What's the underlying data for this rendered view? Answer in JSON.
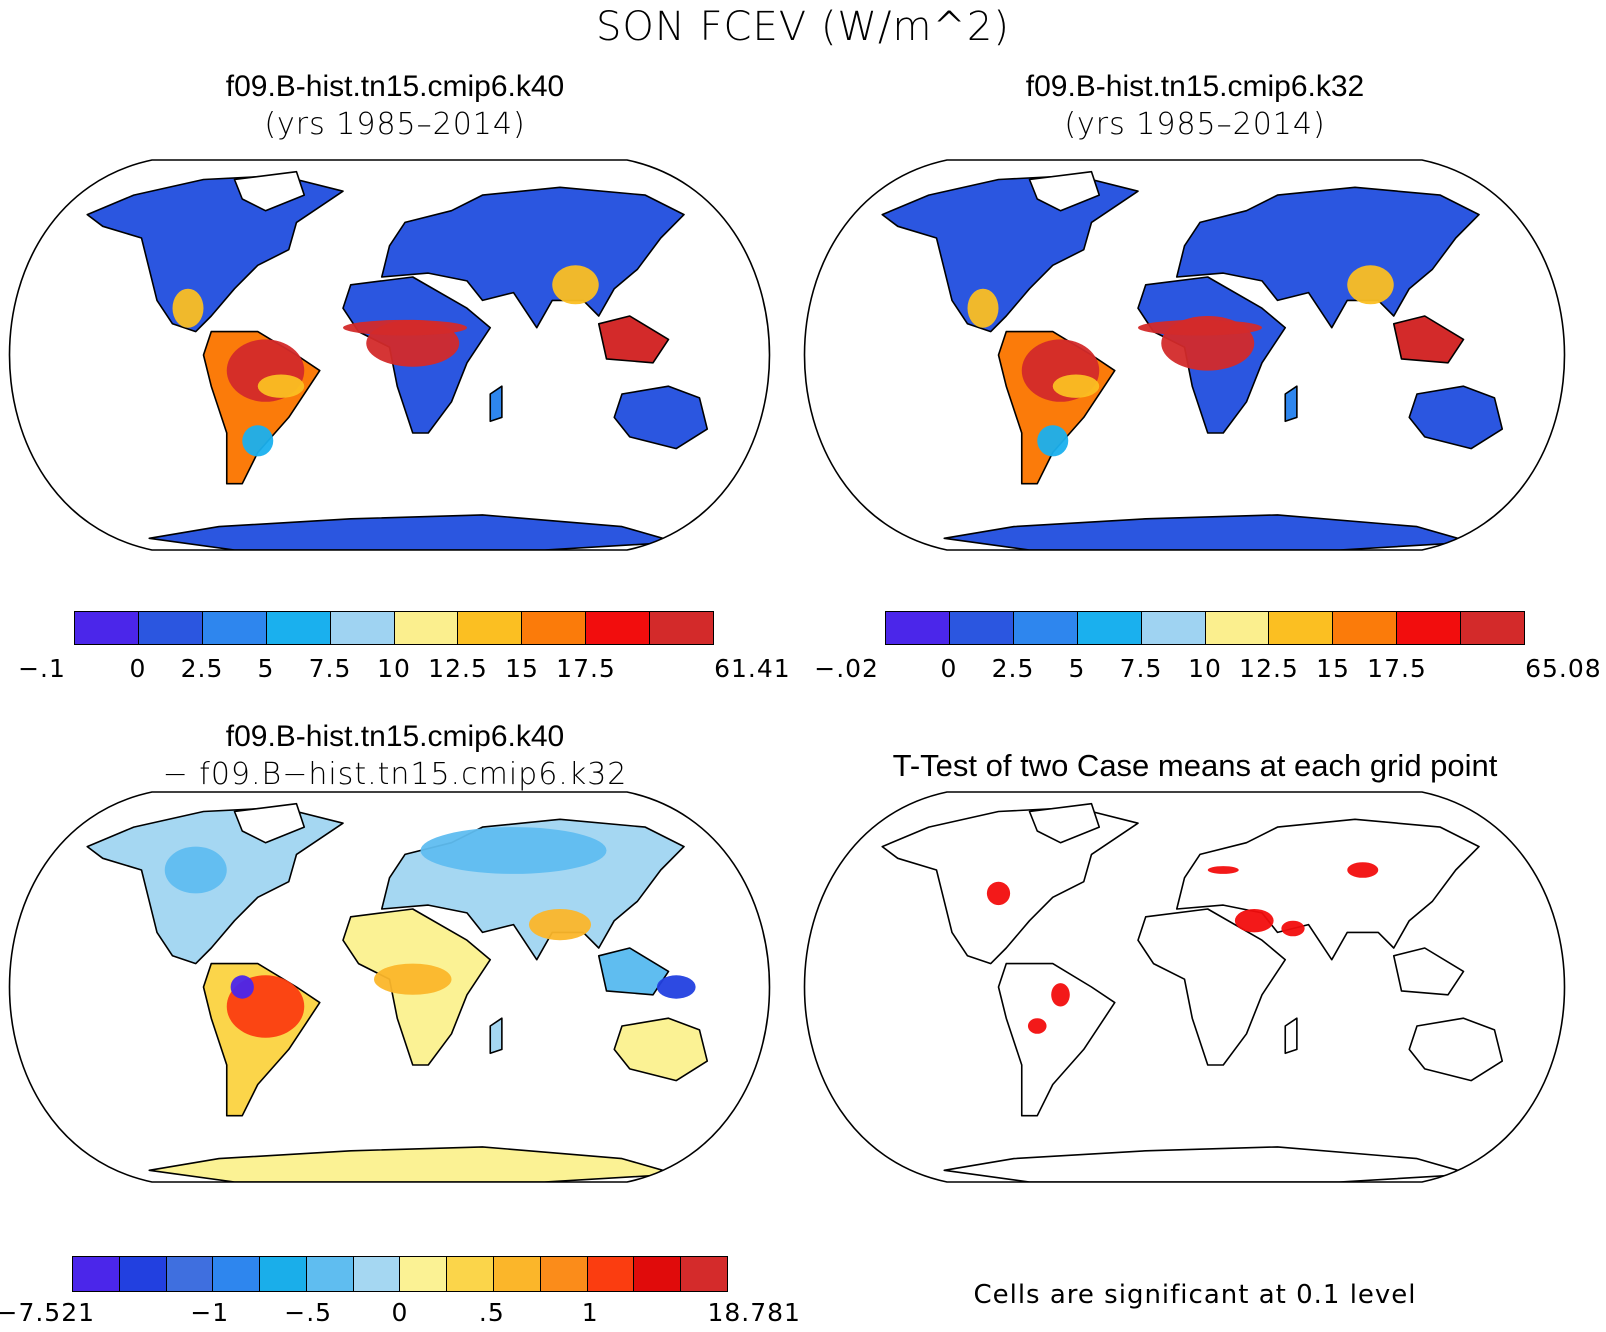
{
  "figure": {
    "title": "SON FCEV (W/m^2)"
  },
  "panels": [
    {
      "id": "case1",
      "title_line1": "f09.B-hist.tn15.cmip6.k40",
      "title_line2": "(yrs 1985–2014)",
      "colorbar": {
        "colors": [
          "#4b26ea",
          "#2b56e0",
          "#2e86ee",
          "#1ab0ee",
          "#9fd3f2",
          "#fbef8e",
          "#fbbf22",
          "#fb7b0a",
          "#f20d0d",
          "#d32a2a"
        ],
        "labels": [
          "−.1",
          "0",
          "2.5",
          "5",
          "7.5",
          "10",
          "12.5",
          "15",
          "17.5",
          "61.41"
        ]
      }
    },
    {
      "id": "case2",
      "title_line1": "f09.B-hist.tn15.cmip6.k32",
      "title_line2": "(yrs 1985–2014)",
      "colorbar": {
        "colors": [
          "#4b26ea",
          "#2b56e0",
          "#2e86ee",
          "#1ab0ee",
          "#9fd3f2",
          "#fbef8e",
          "#fbbf22",
          "#fb7b0a",
          "#f20d0d",
          "#d32a2a"
        ],
        "labels": [
          "−.02",
          "0",
          "2.5",
          "5",
          "7.5",
          "10",
          "12.5",
          "15",
          "17.5",
          "65.08"
        ]
      }
    },
    {
      "id": "difference",
      "title_line1": "f09.B-hist.tn15.cmip6.k40",
      "title_line2": "− f09.B−hist.tn15.cmip6.k32",
      "colorbar": {
        "colors": [
          "#4b26ea",
          "#2240e0",
          "#3f6fdf",
          "#2e86ee",
          "#1aaeea",
          "#5fbdf0",
          "#a5d7f2",
          "#fbf294",
          "#fbd54a",
          "#fbb62a",
          "#fb8c1a",
          "#fb3d10",
          "#e00b0b",
          "#d42b2b"
        ],
        "labels": [
          "−7.521",
          "−1",
          "−.5",
          "0",
          ".5",
          "1",
          "18.781"
        ]
      }
    },
    {
      "id": "ttest",
      "title": "T-Test of two Case means at each grid point",
      "note": "Cells are significant at 0.1 level"
    }
  ]
}
